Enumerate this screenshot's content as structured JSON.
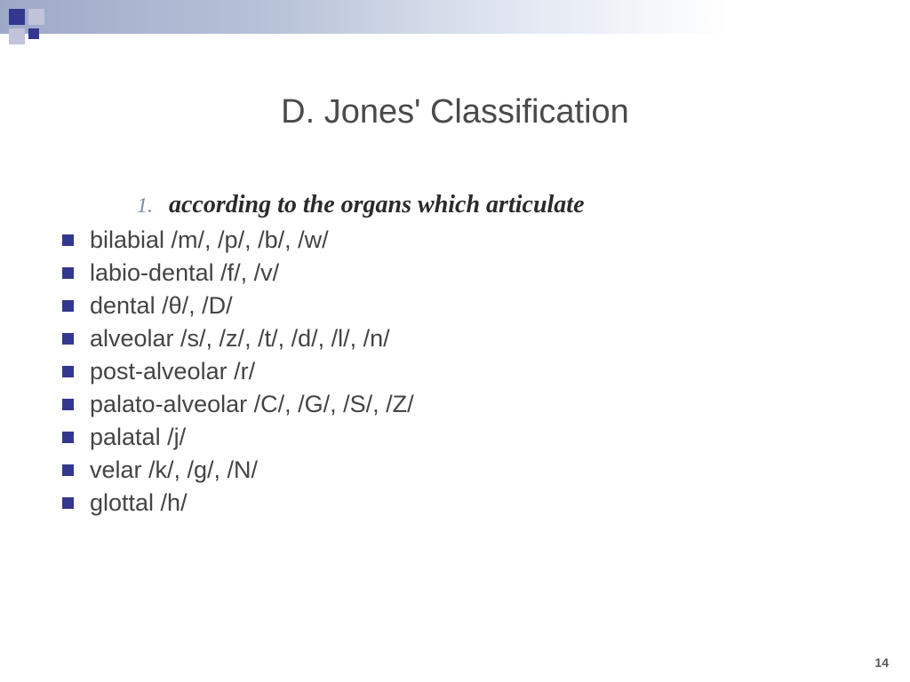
{
  "slide": {
    "title": "D. Jones' Classification",
    "page_number": "14",
    "numbered": {
      "marker": "1.",
      "text": "according to the organs which articulate"
    },
    "bullets": [
      "bilabial /m/, /p/, /b/, /w/",
      "labio-dental /f/, /v/",
      "dental /θ/, /D/",
      "alveolar  /s/, /z/, /t/, /d/, /l/, /n/",
      "post-alveolar /r/",
      "palato-alveolar /C/, /G/, /S/, /Z/",
      "palatal /j/",
      "velar /k/, /g/, /N/",
      "glottal /h/"
    ]
  },
  "style": {
    "background_color": "#ffffff",
    "top_bar_gradient": [
      "#9da9c7",
      "#b8c2d8",
      "#dfe5f0",
      "#ffffff"
    ],
    "accent_color": "#34378f",
    "accent_light": "#c0c3da",
    "title_color": "#4a4a4a",
    "title_fontsize": 38,
    "body_color": "#444444",
    "body_fontsize": 27,
    "numbered_color": "#7a8bb0",
    "numbered_text_fontsize": 28,
    "bullet_size": 13,
    "page_number_color": "#555555",
    "page_number_fontsize": 14
  }
}
